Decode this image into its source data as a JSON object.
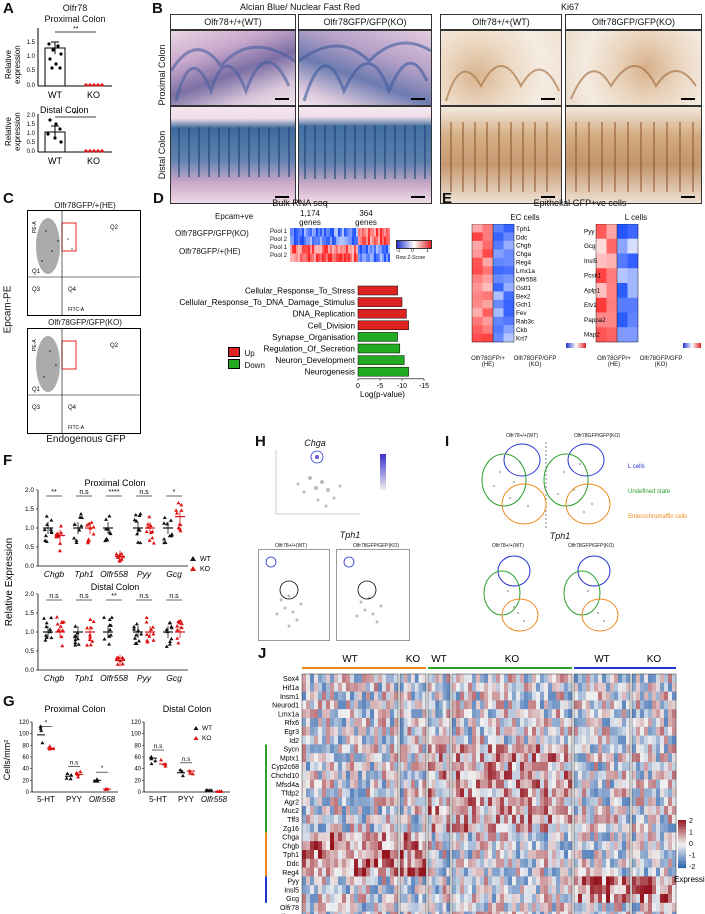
{
  "panels": {
    "A": {
      "letter": "A",
      "prox_title": "Olfr78",
      "prox_subtitle": "Proximal Colon",
      "distal_title": "Distal Colon",
      "ylabel": "Relative expression",
      "ylabel1": "Relative",
      "ylabel2": "expression",
      "x_wt": "WT",
      "x_ko": "KO",
      "sig": "**",
      "ticks_prox": [
        "0.0",
        "0.5",
        "1.0",
        "1.5"
      ],
      "ticks_dist": [
        "0.0",
        "0.5",
        "1.0",
        "1.5",
        "2.0"
      ]
    },
    "B": {
      "letter": "B",
      "stain_title": "Alcian Blue/ Nuclear Fast Red",
      "ki67_title": "Ki67",
      "wt_label": "Olfr78+/+(WT)",
      "ko_label": "Olfr78GFP/GFP(KO)",
      "row_prox": "Proximal Colon",
      "row_dist": "Distal Colon"
    },
    "C": {
      "letter": "C",
      "top_title": "Olfr78GFP/+(HE)",
      "bottom_title": "Olfr78GFP/GFP(KO)",
      "ylabel": "Epcam-PE",
      "xlabel": "Endogenous GFP",
      "q1": "Q1",
      "q2": "Q2",
      "q3": "Q3",
      "q4": "Q4",
      "axis_y": "PE-A",
      "axis_x": "FITC-A"
    },
    "D": {
      "letter": "D",
      "title": "Bulk RNA seq",
      "epcam": "Epcam+ve",
      "genes1": "1,174",
      "genes2": "364",
      "genes_word": "genes",
      "row_ko": "Olfr78GFP/GFP(KO)",
      "row_he": "Olfr78GFP/+(HE)",
      "pool1": "Pool 1",
      "pool2": "Pool 2",
      "zlabel": "Row Z-Score",
      "z_ticks": [
        "-1",
        "0",
        "1"
      ],
      "legend_up": "Up",
      "legend_down": "Down",
      "xaxis": "Log(p-value)",
      "x_ticks": [
        "0",
        "-5",
        "-10",
        "-15"
      ],
      "terms": [
        {
          "name": "Cellular_Response_To_Stress",
          "dir": "up",
          "value": -9
        },
        {
          "name": "Cellular_Response_To_DNA_Damage_Stimulus",
          "dir": "up",
          "value": -10
        },
        {
          "name": "DNA_Replication",
          "dir": "up",
          "value": -11
        },
        {
          "name": "Cell_Division",
          "dir": "up",
          "value": -11.5
        },
        {
          "name": "Synapse_Organisation",
          "dir": "down",
          "value": -9
        },
        {
          "name": "Regulation_Of_Secretion",
          "dir": "down",
          "value": -9.5
        },
        {
          "name": "Neuron_Development",
          "dir": "down",
          "value": -10.5
        },
        {
          "name": "Neurogenesis",
          "dir": "down",
          "value": -11.5
        }
      ]
    },
    "E": {
      "letter": "E",
      "title": "Epithelial GFP+ve cells",
      "ec_title": "EC cells",
      "l_title": "L cells",
      "ec_genes": [
        "Tph1",
        "Ddc",
        "Chgb",
        "Chga",
        "Reg4",
        "Lmx1a",
        "Olfr558",
        "Gstt1",
        "Bex2",
        "Gch1",
        "Fev",
        "Rab3c",
        "Ckb",
        "Krt7"
      ],
      "l_genes": [
        "Pyy",
        "Gcg",
        "Insl5",
        "Pcsk1",
        "Aplp1",
        "Etv1",
        "Pappa2",
        "Map2"
      ],
      "he_label": "Olfr78GFP/+",
      "he_sub": "(HE)",
      "ko_label": "Olfr78GFP/GFP",
      "ko_sub": "(KO)"
    },
    "F": {
      "letter": "F",
      "prox_title": "Proximal Colon",
      "dist_title": "Distal Colon",
      "ylabel": "Relative Expression",
      "genes": [
        "Chgb",
        "Tph1",
        "Olfr558",
        "Pyy",
        "Gcg"
      ],
      "sig_prox": [
        "**",
        "n.s",
        "****",
        "n.s",
        "*"
      ],
      "sig_dist": [
        "n.s",
        "n.s",
        "**",
        "n.s",
        "n.s"
      ],
      "legend_wt": "WT",
      "legend_ko": "KO",
      "ticks": [
        "0.0",
        "0.5",
        "1.0",
        "1.5",
        "2.0"
      ]
    },
    "G": {
      "letter": "G",
      "prox_title": "Proximal Colon",
      "dist_title": "Distal Colon",
      "ylabel": "Cells/mm²",
      "cats": [
        "5-HT",
        "PYY",
        "Olfr558"
      ],
      "sig_prox": [
        "*",
        "n.s",
        "*"
      ],
      "sig_dist": [
        "n.s",
        "n.s",
        ""
      ],
      "legend_wt": "WT",
      "legend_ko": "KO",
      "ticks": [
        "0",
        "20",
        "40",
        "60",
        "80",
        "100",
        "120"
      ]
    },
    "H": {
      "letter": "H",
      "gene1": "Chga",
      "gene2": "Tph1",
      "wt": "Olfr78+/+(WT)",
      "ko": "Olfr78GFP/GFP(KO)",
      "umap1": "UMAP_1",
      "umap2": "UMAP_2"
    },
    "I": {
      "letter": "I",
      "wt": "Olfr78+/+(WT)",
      "ko": "Olfr78GFP/GFP(KO)",
      "l_cells": "L cells",
      "undefined": "Undefined state",
      "ec": "Enterochromaffin cells",
      "gene2": "Tph1",
      "umap1": "UMAP_1",
      "umap2": "UMAP_2"
    },
    "J": {
      "letter": "J",
      "genes": [
        "Sox4",
        "Hif1a",
        "Insm1",
        "Neurod1",
        "Lmx1a",
        "Rfx6",
        "Egr3",
        "Id2",
        "Sycn",
        "Mptx1",
        "Cyp2c68",
        "Chchd10",
        "Mfsd4a",
        "Tfdp2",
        "Agr2",
        "Muc2",
        "Tff3",
        "Zg16",
        "Chga",
        "Chgb",
        "Tph1",
        "Ddc",
        "Reg4",
        "Pyy",
        "Insl5",
        "Gcg",
        "Olfr78",
        "Olfr558"
      ],
      "groups": [
        "WT",
        "KO",
        "WT",
        "KO",
        "WT",
        "KO"
      ],
      "scale_ticks": [
        "2",
        "1",
        "0",
        "-1",
        "-2"
      ],
      "scale_title": "Expression"
    }
  },
  "colors": {
    "wt": "#111111",
    "ko": "#dd1111",
    "up": "#dd2222",
    "down": "#22aa22",
    "blue": "#2233cc",
    "green": "#2aa02a",
    "orange": "#ee8a1c"
  }
}
